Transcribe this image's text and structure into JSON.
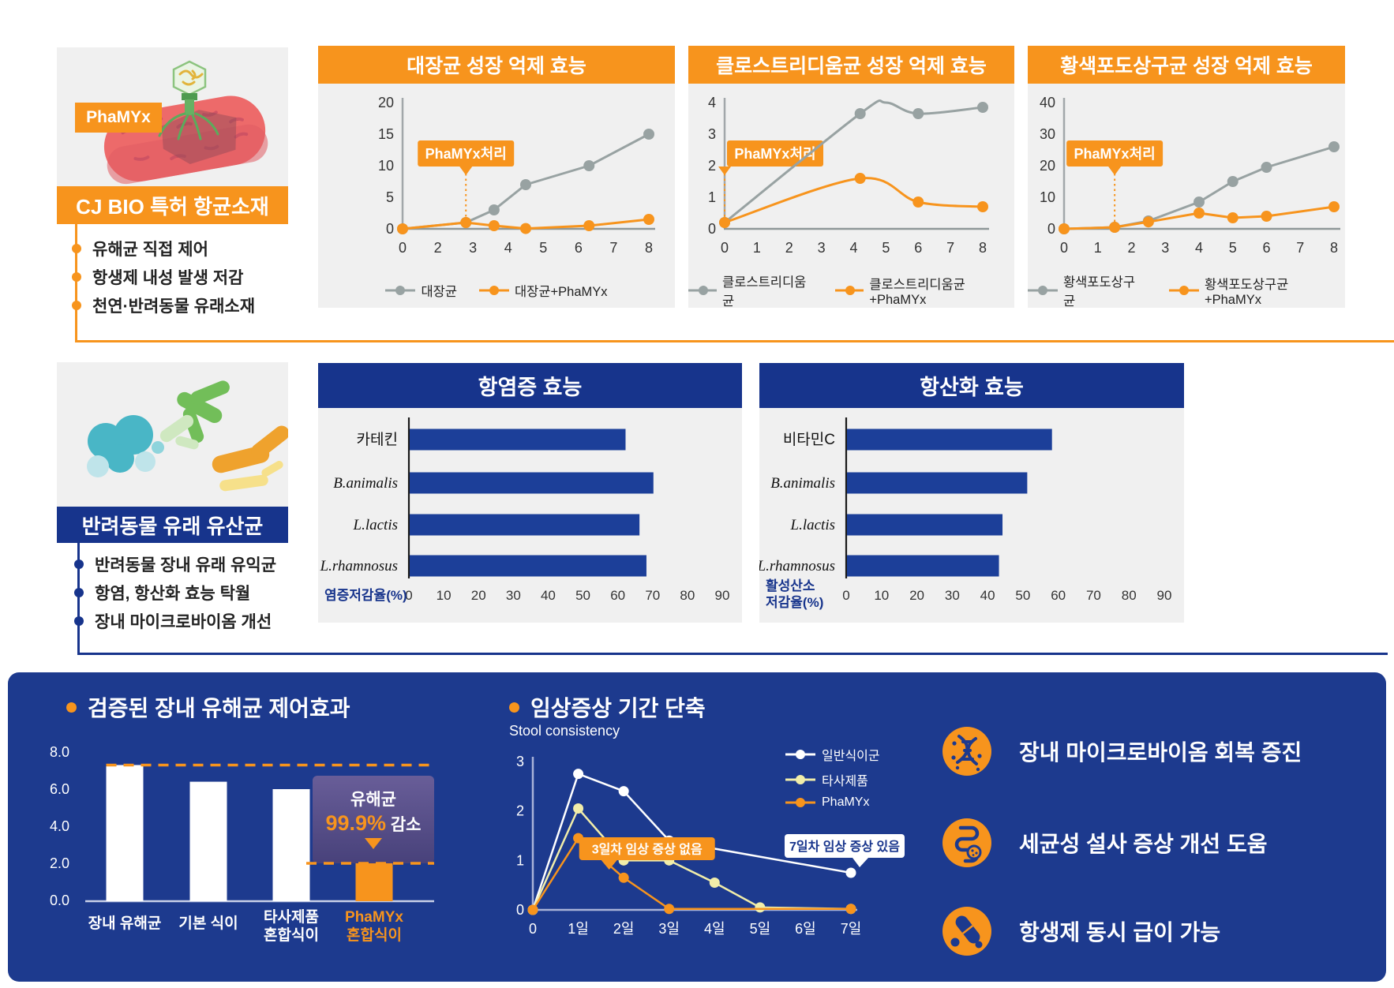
{
  "colors": {
    "orange": "#F7941D",
    "gray_series": "#98A2A2",
    "header_blue": "#17348C",
    "panel_blue": "#1D3A8E",
    "bar_blue": "#1C3F99",
    "pale_yellow": "#F1EDA9",
    "white": "#FFFFFF",
    "chart_bg": "#F0F0F0"
  },
  "section1": {
    "tag": "PhaMYx",
    "banner": "CJ BIO 특허 항균소재",
    "bullets": [
      "유해균 직접 제어",
      "항생제 내성 발생 저감",
      "천연·반려동물 유래소재"
    ]
  },
  "section2": {
    "banner": "반려동물 유래 유산균",
    "bullets": [
      "반려동물 장내 유래 유익균",
      "항염, 항산화 효능 탁월",
      "장내 마이크로바이옴 개선"
    ]
  },
  "bottom": {
    "title1": "검증된 장내 유해균 제어효과",
    "title2": "임상증상 기간 단축",
    "benefits": [
      {
        "icon": "dna-icon",
        "label": "장내 마이크로바이옴 회복 증진"
      },
      {
        "icon": "intestine-icon",
        "label": "세균성 설사 증상 개선 도움"
      },
      {
        "icon": "pill-icon",
        "label": "항생제 동시 급이 가능"
      }
    ]
  },
  "chart_data": [
    {
      "id": "ecoli",
      "type": "line",
      "title": "대장균 성장 억제 효능",
      "x_ticks": [
        "0",
        "2",
        "3",
        "4",
        "5",
        "6",
        "7",
        "8"
      ],
      "y_ticks": [
        0,
        5,
        10,
        15,
        20
      ],
      "ylim": [
        0,
        20
      ],
      "annotation": {
        "label": "PhaMYx처리",
        "x": 2.8
      },
      "series": [
        {
          "name": "대장균",
          "color": "gray",
          "points": [
            [
              0,
              0
            ],
            [
              2.8,
              1
            ],
            [
              3.6,
              3
            ],
            [
              4.5,
              7
            ],
            [
              6.3,
              10
            ],
            [
              8,
              15
            ]
          ]
        },
        {
          "name": "대장균+PhaMYx",
          "color": "orange",
          "points": [
            [
              0,
              0
            ],
            [
              2.8,
              1
            ],
            [
              3.6,
              0.5
            ],
            [
              4.5,
              0.05
            ],
            [
              6.3,
              0.5
            ],
            [
              8,
              1.5
            ]
          ]
        }
      ]
    },
    {
      "id": "clostridium",
      "type": "line",
      "title": "클로스트리디움균 성장 억제 효능",
      "x_ticks": [
        "0",
        "1",
        "2",
        "3",
        "4",
        "5",
        "6",
        "7",
        "8"
      ],
      "y_ticks": [
        0,
        1,
        2,
        3,
        4
      ],
      "ylim": [
        0,
        4
      ],
      "annotation": {
        "label": "PhaMYx처리",
        "x": 0
      },
      "series": [
        {
          "name": "클로스트리디움균",
          "color": "gray",
          "smooth": true,
          "marker_skip": [
            2
          ],
          "points": [
            [
              0,
              0.2
            ],
            [
              4.2,
              3.65
            ],
            [
              5,
              4.0
            ],
            [
              6,
              3.65
            ],
            [
              8,
              3.85
            ]
          ]
        },
        {
          "name": "클로스트리디움균+PhaMYx",
          "color": "orange",
          "smooth": true,
          "points": [
            [
              0,
              0.2
            ],
            [
              4.2,
              1.6
            ],
            [
              6,
              0.85
            ],
            [
              8,
              0.7
            ]
          ]
        }
      ]
    },
    {
      "id": "staph",
      "type": "line",
      "title": "황색포도상구균 성장 억제 효능",
      "x_ticks": [
        "0",
        "1",
        "2",
        "3",
        "4",
        "5",
        "6",
        "7",
        "8"
      ],
      "y_ticks": [
        0,
        10,
        20,
        30,
        40
      ],
      "ylim": [
        0,
        40
      ],
      "annotation": {
        "label": "PhaMYx처리",
        "x": 1.5
      },
      "series": [
        {
          "name": "황색포도상구균",
          "color": "gray",
          "points": [
            [
              0,
              0
            ],
            [
              1.5,
              0.5
            ],
            [
              2.5,
              2.5
            ],
            [
              4,
              8.5
            ],
            [
              5,
              15
            ],
            [
              6,
              19.5
            ],
            [
              8,
              26
            ]
          ]
        },
        {
          "name": "황색포도상구균+PhaMYx",
          "color": "orange",
          "points": [
            [
              0,
              0
            ],
            [
              1.5,
              0.5
            ],
            [
              2.5,
              2.2
            ],
            [
              4,
              5
            ],
            [
              5,
              3.5
            ],
            [
              6,
              4
            ],
            [
              8,
              7
            ]
          ]
        }
      ]
    },
    {
      "id": "anti-inflammatory",
      "type": "bar",
      "title": "항염증 효능",
      "categories": [
        "카테킨",
        "B.animalis",
        "L.lactis",
        "L.rhamnosus"
      ],
      "italic_categories": [
        1,
        2,
        3
      ],
      "values": [
        62,
        70,
        66,
        68
      ],
      "xlabel": "염증저감율(%)",
      "xlim": [
        0,
        90
      ],
      "x_ticks": [
        0,
        10,
        20,
        30,
        40,
        50,
        60,
        70,
        80,
        90
      ]
    },
    {
      "id": "antioxidant",
      "type": "bar",
      "title": "항산화 효능",
      "categories": [
        "비타민C",
        "B.animalis",
        "L.lactis",
        "L.rhamnosus"
      ],
      "italic_categories": [
        1,
        2,
        3
      ],
      "values": [
        58,
        51,
        44,
        43
      ],
      "xlabel": "활성산소\n저감율(%)",
      "xlim": [
        0,
        90
      ],
      "x_ticks": [
        0,
        10,
        20,
        30,
        40,
        50,
        60,
        70,
        80,
        90
      ]
    },
    {
      "id": "harmful-bacteria-control",
      "type": "bar-vertical",
      "title": "검증된 장내 유해균 제어효과",
      "categories": [
        "장내 유해균",
        "기본 식이",
        "타사제품\n혼합식이",
        "PhaMYx\n혼합식이"
      ],
      "values": [
        7.3,
        6.4,
        6.0,
        2.0
      ],
      "bar_colors": [
        "white",
        "white",
        "white",
        "orange"
      ],
      "y_ticks": [
        "0.0",
        "2.0",
        "4.0",
        "6.0",
        "8.0"
      ],
      "ylim": [
        0,
        8
      ],
      "dashed_levels": [
        7.3,
        2.0
      ],
      "badge": {
        "line1": "유해균",
        "pct": "99.9%",
        "line2": " 감소"
      }
    },
    {
      "id": "clinical-symptoms",
      "type": "line",
      "title": "임상증상 기간 단축",
      "subtitle": "Stool consistency",
      "x_ticks": [
        "0",
        "1일",
        "2일",
        "3일",
        "4일",
        "5일",
        "6일",
        "7일"
      ],
      "y_ticks": [
        0,
        1,
        2,
        3
      ],
      "ylim": [
        0,
        3
      ],
      "series": [
        {
          "name": "일반식이군",
          "color": "white",
          "points": [
            [
              0,
              0
            ],
            [
              1,
              2.75
            ],
            [
              2,
              2.4
            ],
            [
              3,
              1.4
            ],
            [
              7,
              0.75
            ]
          ]
        },
        {
          "name": "타사제품",
          "color": "paleyellow",
          "points": [
            [
              0,
              0
            ],
            [
              1,
              2.05
            ],
            [
              2,
              1
            ],
            [
              3,
              1
            ],
            [
              4,
              0.55
            ],
            [
              5,
              0.05
            ],
            [
              7,
              0.02
            ]
          ]
        },
        {
          "name": "PhaMYx",
          "color": "orange",
          "points": [
            [
              0,
              0
            ],
            [
              1,
              1.45
            ],
            [
              2,
              0.65
            ],
            [
              3,
              0.02
            ],
            [
              7,
              0.02
            ]
          ]
        }
      ],
      "callouts": [
        {
          "text": "7일차 임상 증상 있음",
          "style": "white",
          "x": 7,
          "y": 0.75
        },
        {
          "text": "3일차 임상 증상 없음",
          "style": "orange",
          "x": 3,
          "y": 0
        }
      ]
    }
  ]
}
